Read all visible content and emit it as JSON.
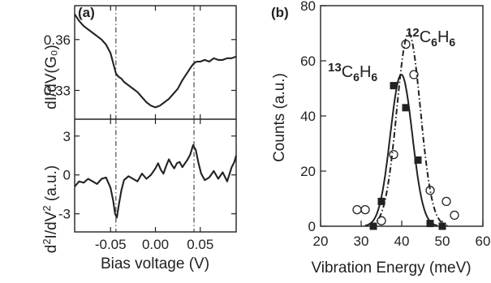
{
  "panel_a": {
    "label": "(a)",
    "xlabel": "Bias voltage (V)",
    "top_ylabel": "dI/dV(G₀)",
    "bottom_ylabel_parts": [
      "d",
      "2",
      "I/dV",
      "2",
      " (a.u.)"
    ]
  },
  "panel_b": {
    "label": "(b)",
    "xlabel": "Vibration Energy (meV)",
    "ylabel": "Counts (a.u.)",
    "species": [
      {
        "parts": [
          "13",
          "C",
          "6",
          "H",
          "6"
        ]
      },
      {
        "parts": [
          "12",
          "C",
          "6",
          "H",
          "6"
        ]
      }
    ]
  },
  "colors": {
    "line": "#222222",
    "axis": "#222222"
  },
  "chart_data": [
    {
      "type": "line",
      "subplot": "a-top",
      "xlabel": "",
      "ylabel": "dI/dV(G₀)",
      "xlim": [
        -0.09,
        0.09
      ],
      "ylim": [
        0.313,
        0.38
      ],
      "xticks": [
        -0.05,
        0.0,
        0.05
      ],
      "yticks": [
        0.33,
        0.36
      ],
      "ytick_labels": [
        "0.33",
        "0.36"
      ],
      "vlines": [
        -0.044,
        0.043
      ],
      "series": [
        {
          "x": [
            -0.09,
            -0.085,
            -0.08,
            -0.075,
            -0.07,
            -0.065,
            -0.06,
            -0.055,
            -0.05,
            -0.047,
            -0.044,
            -0.041,
            -0.038,
            -0.035,
            -0.03,
            -0.025,
            -0.02,
            -0.015,
            -0.01,
            -0.005,
            0.0,
            0.005,
            0.01,
            0.015,
            0.02,
            0.025,
            0.03,
            0.035,
            0.04,
            0.043,
            0.046,
            0.05,
            0.055,
            0.06,
            0.065,
            0.07,
            0.075,
            0.08,
            0.085,
            0.09
          ],
          "y": [
            0.375,
            0.371,
            0.368,
            0.366,
            0.364,
            0.362,
            0.36,
            0.357,
            0.352,
            0.346,
            0.34,
            0.338,
            0.337,
            0.335,
            0.333,
            0.331,
            0.329,
            0.326,
            0.323,
            0.321,
            0.32,
            0.321,
            0.323,
            0.325,
            0.328,
            0.331,
            0.336,
            0.34,
            0.344,
            0.346,
            0.347,
            0.347,
            0.348,
            0.347,
            0.349,
            0.348,
            0.348,
            0.349,
            0.349,
            0.35
          ]
        }
      ]
    },
    {
      "type": "line",
      "subplot": "a-bottom",
      "xlabel": "Bias voltage (V)",
      "ylabel": "d2I/dV2 (a.u.)",
      "xlim": [
        -0.09,
        0.09
      ],
      "ylim": [
        -4.4,
        4.3
      ],
      "xticks": [
        -0.05,
        0.0,
        0.05
      ],
      "xtick_labels": [
        "-0.05",
        "0.00",
        "0.05"
      ],
      "yticks": [
        -3,
        0,
        3
      ],
      "ytick_labels": [
        "-3",
        "0",
        "3"
      ],
      "vlines": [
        -0.044,
        0.043
      ],
      "series": [
        {
          "x": [
            -0.09,
            -0.085,
            -0.08,
            -0.075,
            -0.07,
            -0.065,
            -0.06,
            -0.055,
            -0.05,
            -0.047,
            -0.045,
            -0.043,
            -0.041,
            -0.038,
            -0.035,
            -0.03,
            -0.025,
            -0.02,
            -0.015,
            -0.01,
            -0.005,
            0.0,
            0.003,
            0.006,
            0.009,
            0.012,
            0.015,
            0.018,
            0.021,
            0.024,
            0.027,
            0.03,
            0.033,
            0.036,
            0.039,
            0.042,
            0.045,
            0.048,
            0.051,
            0.055,
            0.06,
            0.065,
            0.07,
            0.075,
            0.08,
            0.085,
            0.088,
            0.09
          ],
          "y": [
            -0.9,
            -0.5,
            -0.6,
            -0.3,
            -0.5,
            -0.7,
            -0.3,
            -0.2,
            -1.0,
            -2.0,
            -3.0,
            -3.3,
            -2.4,
            -1.2,
            -0.4,
            -0.1,
            -0.3,
            -0.5,
            0.1,
            -0.3,
            0.0,
            0.5,
            0.9,
            0.4,
            0.1,
            0.7,
            1.2,
            0.8,
            0.5,
            0.9,
            1.0,
            0.6,
            0.9,
            1.2,
            1.6,
            2.3,
            1.9,
            0.9,
            0.1,
            -0.4,
            -0.2,
            0.3,
            -0.3,
            0.2,
            -0.5,
            0.6,
            1.0,
            1.5
          ]
        }
      ]
    },
    {
      "type": "scatter",
      "subplot": "b",
      "xlabel": "Vibration Energy (meV)",
      "ylabel": "Counts (a.u.)",
      "xlim": [
        20,
        60
      ],
      "ylim": [
        0,
        80
      ],
      "xticks": [
        20,
        30,
        40,
        50,
        60
      ],
      "yticks": [
        0,
        20,
        40,
        60,
        80
      ],
      "series": [
        {
          "marker": "filled-square",
          "line": "solid",
          "x": [
            33,
            35,
            38,
            41,
            44,
            47,
            50
          ],
          "y": [
            0,
            9,
            51,
            43,
            24,
            1,
            0
          ],
          "fit": {
            "center": 39.9,
            "amplitude": 55,
            "sigma": 2.7
          }
        },
        {
          "marker": "open-circle",
          "line": "dash-dot",
          "x": [
            29,
            31,
            35,
            38,
            41,
            43,
            47,
            51,
            53
          ],
          "y": [
            6,
            6,
            2,
            26,
            66,
            55,
            13,
            9,
            4
          ],
          "fit": {
            "center": 41.7,
            "amplitude": 70,
            "sigma": 2.9
          }
        }
      ]
    }
  ]
}
